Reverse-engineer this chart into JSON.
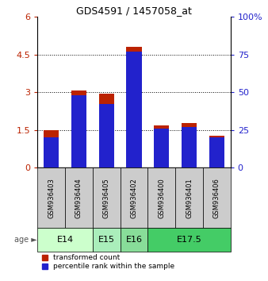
{
  "title": "GDS4591 / 1457058_at",
  "samples": [
    "GSM936403",
    "GSM936404",
    "GSM936405",
    "GSM936402",
    "GSM936400",
    "GSM936401",
    "GSM936406"
  ],
  "transformed_count": [
    1.48,
    3.06,
    2.95,
    4.82,
    1.68,
    1.78,
    1.28
  ],
  "percentile_rank_pct": [
    20,
    48,
    42,
    77,
    26,
    27,
    20
  ],
  "age_groups": [
    {
      "label": "E14",
      "span": [
        0,
        2
      ],
      "color": "#ccffcc"
    },
    {
      "label": "E15",
      "span": [
        2,
        3
      ],
      "color": "#aaeebb"
    },
    {
      "label": "E16",
      "span": [
        3,
        4
      ],
      "color": "#88dd99"
    },
    {
      "label": "E17.5",
      "span": [
        4,
        7
      ],
      "color": "#44cc66"
    }
  ],
  "ylim_left": [
    0,
    6
  ],
  "ylim_right": [
    0,
    100
  ],
  "yticks_left": [
    0,
    1.5,
    3.0,
    4.5,
    6
  ],
  "yticks_right": [
    0,
    25,
    50,
    75,
    100
  ],
  "left_tick_labels": [
    "0",
    "1.5",
    "3",
    "4.5",
    "6"
  ],
  "right_tick_labels": [
    "0",
    "25",
    "50",
    "75",
    "100%"
  ],
  "bar_color_red": "#bb2200",
  "bar_color_blue": "#2222cc",
  "bar_width": 0.55,
  "background_color": "#ffffff",
  "sample_bg": "#cccccc",
  "legend_red_label": "transformed count",
  "legend_blue_label": "percentile rank within the sample"
}
